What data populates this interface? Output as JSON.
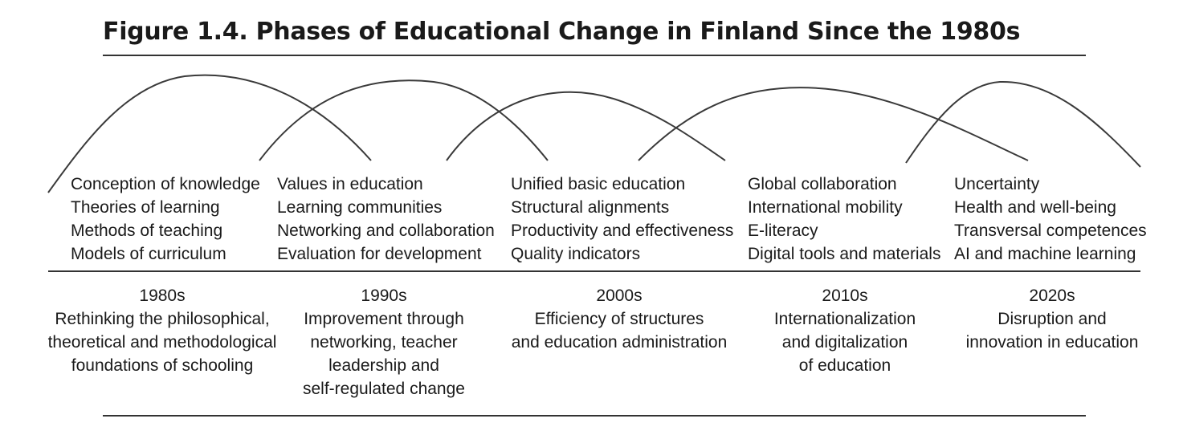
{
  "title": "Figure 1.4.  Phases of Educational Change in Finland Since the 1980s",
  "colors": {
    "text": "#1a1a1a",
    "lines": "#333333"
  },
  "columns": [
    {
      "themes": [
        "Conception of knowledge",
        "Theories of learning",
        "Methods of teaching",
        "Models of curriculum"
      ],
      "decade": "1980s",
      "description": [
        "Rethinking the philosophical,",
        "theoretical and methodological",
        "foundations of schooling"
      ]
    },
    {
      "themes": [
        "Values in education",
        "Learning communities",
        "Networking and collaboration",
        "Evaluation for development"
      ],
      "decade": "1990s",
      "description": [
        "Improvement through",
        "networking, teacher",
        "leadership and",
        "self-regulated change"
      ]
    },
    {
      "themes": [
        "Unified basic education",
        "Structural alignments",
        "Productivity and effectiveness",
        "Quality indicators"
      ],
      "decade": "2000s",
      "description": [
        "Efficiency of structures",
        "and education administration"
      ]
    },
    {
      "themes": [
        "Global collaboration",
        "International mobility",
        "E-literacy",
        "Digital tools and materials"
      ],
      "decade": "2010s",
      "description": [
        "Internationalization",
        "and digitalization",
        "of education"
      ]
    },
    {
      "themes": [
        "Uncertainty",
        "Health and well-being",
        "Transversal competences",
        "AI and machine learning"
      ],
      "decade": "2020s",
      "description": [
        "Disruption and",
        "innovation in education"
      ]
    }
  ]
}
